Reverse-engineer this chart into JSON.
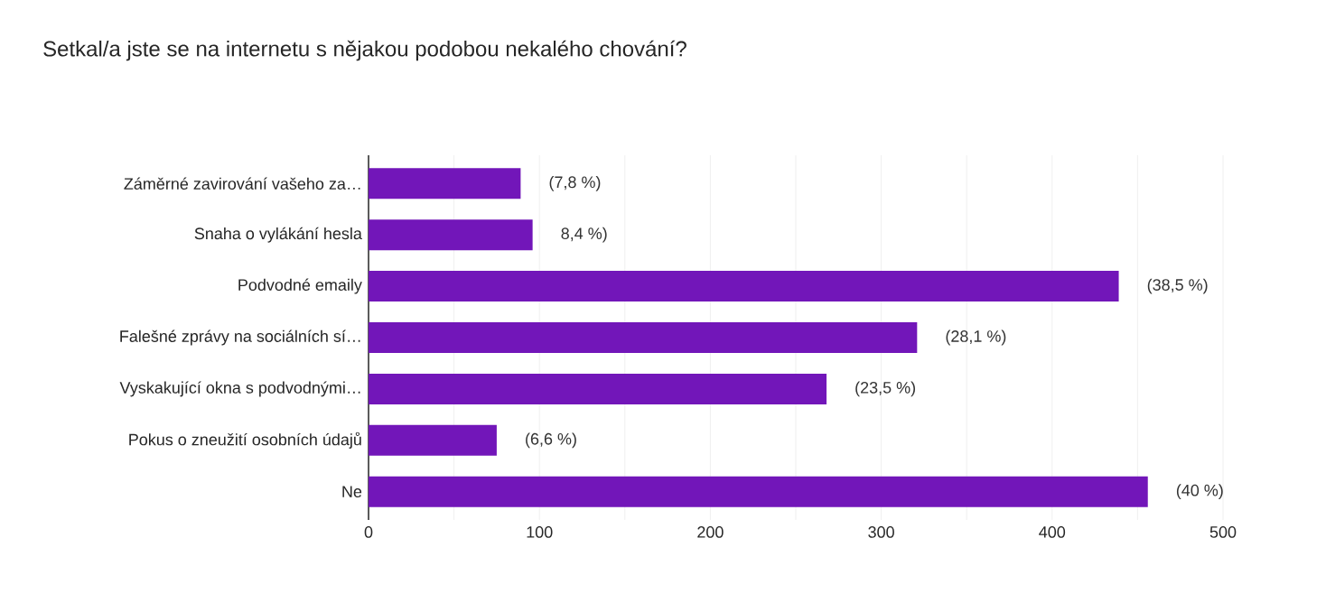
{
  "chart_data": {
    "type": "bar",
    "orientation": "horizontal",
    "title": "Setkal/a jste se na internetu s nějakou podobou nekalého chování?",
    "categories": [
      "Záměrné zavirování vašeho za…",
      "Snaha o vylákání hesla",
      "Podvodné emaily",
      "Falešné zprávy na sociálních sí…",
      "Vyskakující okna s podvodnými…",
      "Pokus o zneužití osobních údajů",
      "Ne"
    ],
    "values": [
      89,
      96,
      439,
      321,
      268,
      75,
      456
    ],
    "annotations": [
      {
        "text": "(7,8 %)",
        "x": 89,
        "y": "Záměrné zavirování vašeho za…"
      },
      {
        "text": "8,4 %)",
        "x": 96,
        "y": "Snaha o vylákání hesla"
      },
      {
        "text": "(38,5 %)",
        "x": 439,
        "y": "Podvodné emaily"
      },
      {
        "text": "(28,1 %)",
        "x": 321,
        "y": "Falešné zprávy na sociálních sí…"
      },
      {
        "text": "(23,5 %)",
        "x": 268,
        "y": "Vyskakující okna s podvodnými…"
      },
      {
        "text": "(6,6 %)",
        "x": 75,
        "y": "Pokus o zneužití osobních údajů"
      },
      {
        "text": "(40 %)",
        "x": 456,
        "y": "Ne"
      }
    ],
    "color": "#7216b9",
    "xlim": [
      0,
      500
    ],
    "xticks": [
      0,
      {
        "value": 50,
        "label": null
      },
      100,
      {
        "value": 150,
        "label": null
      },
      200,
      {
        "value": 250,
        "label": null
      },
      300,
      {
        "value": 350,
        "label": null
      },
      400,
      {
        "value": 450,
        "label": null
      },
      500
    ],
    "grid": "x"
  }
}
